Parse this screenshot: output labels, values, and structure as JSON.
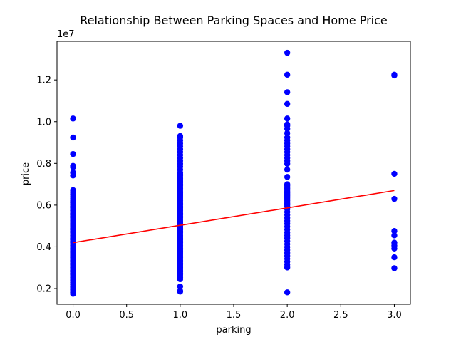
{
  "chart_data": {
    "type": "scatter",
    "title": "Relationship Between Parking Spaces and Home Price",
    "xlabel": "parking",
    "ylabel": "price",
    "y_offset_label": "1e7",
    "xlim": [
      -0.15,
      3.15
    ],
    "ylim": [
      1250000,
      13850000
    ],
    "x_ticks": [
      0.0,
      0.5,
      1.0,
      1.5,
      2.0,
      2.5,
      3.0
    ],
    "x_tick_labels": [
      "0.0",
      "0.5",
      "1.0",
      "1.5",
      "2.0",
      "2.5",
      "3.0"
    ],
    "y_ticks": [
      2000000,
      4000000,
      6000000,
      8000000,
      10000000,
      12000000
    ],
    "y_tick_labels": [
      "0.2",
      "0.4",
      "0.6",
      "0.8",
      "1.0",
      "1.2"
    ],
    "grid": false,
    "series": [
      {
        "kind": "points",
        "color": "#0000ff",
        "points": [
          [
            0,
            1750000
          ],
          [
            0,
            1820000
          ],
          [
            0,
            1890000
          ],
          [
            0,
            1960000
          ],
          [
            0,
            2040000
          ],
          [
            0,
            2100000
          ],
          [
            0,
            2200000
          ],
          [
            0,
            2290000
          ],
          [
            0,
            2380000
          ],
          [
            0,
            2450000
          ],
          [
            0,
            2520000
          ],
          [
            0,
            2590000
          ],
          [
            0,
            2660000
          ],
          [
            0,
            2730000
          ],
          [
            0,
            2800000
          ],
          [
            0,
            2870000
          ],
          [
            0,
            2940000
          ],
          [
            0,
            3010000
          ],
          [
            0,
            3080000
          ],
          [
            0,
            3150000
          ],
          [
            0,
            3220000
          ],
          [
            0,
            3290000
          ],
          [
            0,
            3360000
          ],
          [
            0,
            3430000
          ],
          [
            0,
            3500000
          ],
          [
            0,
            3570000
          ],
          [
            0,
            3640000
          ],
          [
            0,
            3710000
          ],
          [
            0,
            3780000
          ],
          [
            0,
            3850000
          ],
          [
            0,
            3920000
          ],
          [
            0,
            3990000
          ],
          [
            0,
            4060000
          ],
          [
            0,
            4130000
          ],
          [
            0,
            4200000
          ],
          [
            0,
            4270000
          ],
          [
            0,
            4340000
          ],
          [
            0,
            4410000
          ],
          [
            0,
            4480000
          ],
          [
            0,
            4550000
          ],
          [
            0,
            4620000
          ],
          [
            0,
            4690000
          ],
          [
            0,
            4760000
          ],
          [
            0,
            4830000
          ],
          [
            0,
            4900000
          ],
          [
            0,
            4970000
          ],
          [
            0,
            5040000
          ],
          [
            0,
            5110000
          ],
          [
            0,
            5180000
          ],
          [
            0,
            5250000
          ],
          [
            0,
            5320000
          ],
          [
            0,
            5390000
          ],
          [
            0,
            5460000
          ],
          [
            0,
            5530000
          ],
          [
            0,
            5600000
          ],
          [
            0,
            5670000
          ],
          [
            0,
            5740000
          ],
          [
            0,
            5810000
          ],
          [
            0,
            5880000
          ],
          [
            0,
            5950000
          ],
          [
            0,
            6030000
          ],
          [
            0,
            6110000
          ],
          [
            0,
            6200000
          ],
          [
            0,
            6300000
          ],
          [
            0,
            6400000
          ],
          [
            0,
            6510000
          ],
          [
            0,
            6620000
          ],
          [
            0,
            6720000
          ],
          [
            0,
            7420000
          ],
          [
            0,
            7560000
          ],
          [
            0,
            7820000
          ],
          [
            0,
            7880000
          ],
          [
            0,
            8450000
          ],
          [
            0,
            9240000
          ],
          [
            0,
            10150000
          ],
          [
            1,
            1855000
          ],
          [
            1,
            1890000
          ],
          [
            1,
            2100000
          ],
          [
            1,
            2450000
          ],
          [
            1,
            2520000
          ],
          [
            1,
            2590000
          ],
          [
            1,
            2660000
          ],
          [
            1,
            2730000
          ],
          [
            1,
            2800000
          ],
          [
            1,
            2870000
          ],
          [
            1,
            2940000
          ],
          [
            1,
            3010000
          ],
          [
            1,
            3080000
          ],
          [
            1,
            3150000
          ],
          [
            1,
            3220000
          ],
          [
            1,
            3290000
          ],
          [
            1,
            3360000
          ],
          [
            1,
            3430000
          ],
          [
            1,
            3500000
          ],
          [
            1,
            3570000
          ],
          [
            1,
            3640000
          ],
          [
            1,
            3710000
          ],
          [
            1,
            3780000
          ],
          [
            1,
            3850000
          ],
          [
            1,
            3920000
          ],
          [
            1,
            3990000
          ],
          [
            1,
            4060000
          ],
          [
            1,
            4130000
          ],
          [
            1,
            4200000
          ],
          [
            1,
            4270000
          ],
          [
            1,
            4340000
          ],
          [
            1,
            4410000
          ],
          [
            1,
            4480000
          ],
          [
            1,
            4550000
          ],
          [
            1,
            4620000
          ],
          [
            1,
            4690000
          ],
          [
            1,
            4760000
          ],
          [
            1,
            4830000
          ],
          [
            1,
            4900000
          ],
          [
            1,
            4970000
          ],
          [
            1,
            5040000
          ],
          [
            1,
            5110000
          ],
          [
            1,
            5180000
          ],
          [
            1,
            5250000
          ],
          [
            1,
            5320000
          ],
          [
            1,
            5390000
          ],
          [
            1,
            5460000
          ],
          [
            1,
            5530000
          ],
          [
            1,
            5600000
          ],
          [
            1,
            5670000
          ],
          [
            1,
            5740000
          ],
          [
            1,
            5810000
          ],
          [
            1,
            5880000
          ],
          [
            1,
            5950000
          ],
          [
            1,
            6020000
          ],
          [
            1,
            6090000
          ],
          [
            1,
            6160000
          ],
          [
            1,
            6230000
          ],
          [
            1,
            6300000
          ],
          [
            1,
            6370000
          ],
          [
            1,
            6440000
          ],
          [
            1,
            6510000
          ],
          [
            1,
            6580000
          ],
          [
            1,
            6650000
          ],
          [
            1,
            6720000
          ],
          [
            1,
            6790000
          ],
          [
            1,
            6860000
          ],
          [
            1,
            6930000
          ],
          [
            1,
            7000000
          ],
          [
            1,
            7070000
          ],
          [
            1,
            7140000
          ],
          [
            1,
            7210000
          ],
          [
            1,
            7280000
          ],
          [
            1,
            7350000
          ],
          [
            1,
            7420000
          ],
          [
            1,
            7490000
          ],
          [
            1,
            7560000
          ],
          [
            1,
            7700000
          ],
          [
            1,
            7840000
          ],
          [
            1,
            7980000
          ],
          [
            1,
            8120000
          ],
          [
            1,
            8260000
          ],
          [
            1,
            8400000
          ],
          [
            1,
            8540000
          ],
          [
            1,
            8680000
          ],
          [
            1,
            8820000
          ],
          [
            1,
            8960000
          ],
          [
            1,
            9100000
          ],
          [
            1,
            9240000
          ],
          [
            1,
            9310000
          ],
          [
            1,
            9800000
          ],
          [
            2,
            1820000
          ],
          [
            2,
            3010000
          ],
          [
            2,
            3150000
          ],
          [
            2,
            3290000
          ],
          [
            2,
            3430000
          ],
          [
            2,
            3570000
          ],
          [
            2,
            3710000
          ],
          [
            2,
            3850000
          ],
          [
            2,
            3990000
          ],
          [
            2,
            4130000
          ],
          [
            2,
            4270000
          ],
          [
            2,
            4410000
          ],
          [
            2,
            4550000
          ],
          [
            2,
            4690000
          ],
          [
            2,
            4830000
          ],
          [
            2,
            4970000
          ],
          [
            2,
            5110000
          ],
          [
            2,
            5250000
          ],
          [
            2,
            5390000
          ],
          [
            2,
            5530000
          ],
          [
            2,
            5670000
          ],
          [
            2,
            5810000
          ],
          [
            2,
            5950000
          ],
          [
            2,
            6020000
          ],
          [
            2,
            6090000
          ],
          [
            2,
            6160000
          ],
          [
            2,
            6230000
          ],
          [
            2,
            6300000
          ],
          [
            2,
            6370000
          ],
          [
            2,
            6440000
          ],
          [
            2,
            6510000
          ],
          [
            2,
            6580000
          ],
          [
            2,
            6650000
          ],
          [
            2,
            6720000
          ],
          [
            2,
            6790000
          ],
          [
            2,
            6860000
          ],
          [
            2,
            6930000
          ],
          [
            2,
            7000000
          ],
          [
            2,
            7350000
          ],
          [
            2,
            7700000
          ],
          [
            2,
            7980000
          ],
          [
            2,
            8120000
          ],
          [
            2,
            8260000
          ],
          [
            2,
            8400000
          ],
          [
            2,
            8540000
          ],
          [
            2,
            8680000
          ],
          [
            2,
            8820000
          ],
          [
            2,
            8960000
          ],
          [
            2,
            9100000
          ],
          [
            2,
            9240000
          ],
          [
            2,
            9450000
          ],
          [
            2,
            9660000
          ],
          [
            2,
            9800000
          ],
          [
            2,
            9870000
          ],
          [
            2,
            10150000
          ],
          [
            2,
            10850000
          ],
          [
            2,
            11410000
          ],
          [
            2,
            12250000
          ],
          [
            2,
            13300000
          ],
          [
            3,
            2975000
          ],
          [
            3,
            3500000
          ],
          [
            3,
            3920000
          ],
          [
            3,
            4060000
          ],
          [
            3,
            4200000
          ],
          [
            3,
            4550000
          ],
          [
            3,
            4760000
          ],
          [
            3,
            6300000
          ],
          [
            3,
            7500000
          ],
          [
            3,
            12215000
          ],
          [
            3,
            12250000
          ]
        ]
      },
      {
        "kind": "line",
        "color": "#ff0000",
        "points": [
          [
            0,
            4200000
          ],
          [
            3,
            6700000
          ]
        ]
      }
    ]
  }
}
